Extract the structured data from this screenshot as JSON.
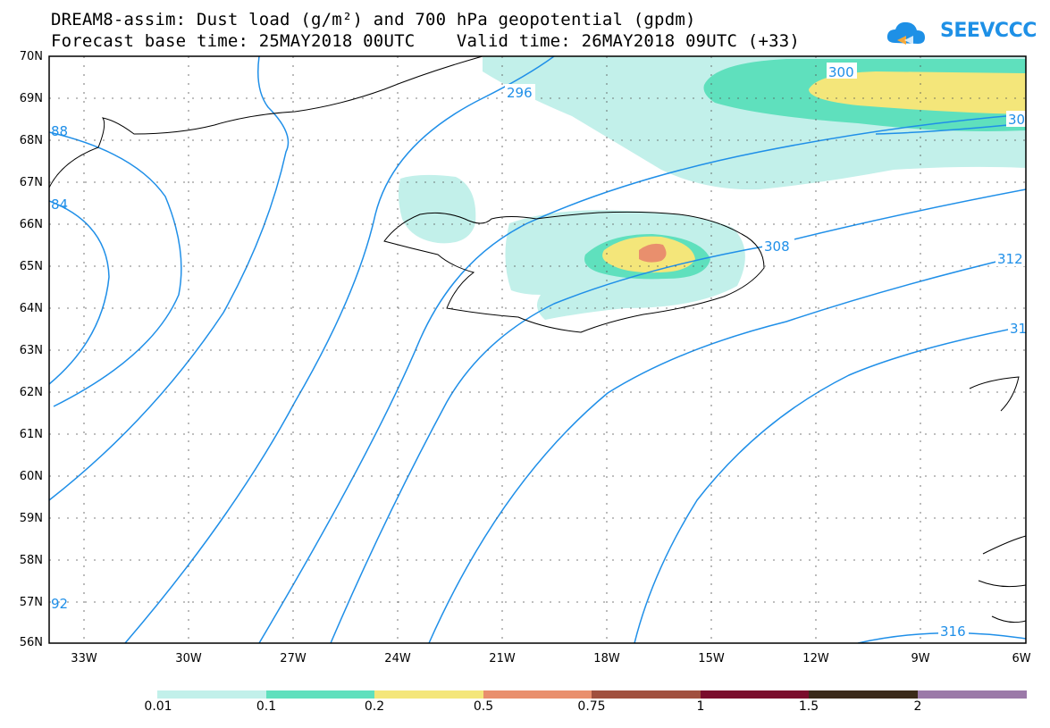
{
  "title": {
    "line1": "DREAM8-assim: Dust load (g/m²) and 700 hPa geopotential (gpdm)",
    "line2": "Forecast base time: 25MAY2018 00UTC    Valid time: 26MAY2018 09UTC (+33)"
  },
  "logo": {
    "text": "SEEVCCC",
    "icon": "cloud-icon",
    "color": "#1e90e6"
  },
  "map": {
    "lat_labels": [
      "70N",
      "69N",
      "68N",
      "67N",
      "66N",
      "65N",
      "64N",
      "63N",
      "62N",
      "61N",
      "60N",
      "59N",
      "58N",
      "57N",
      "56N"
    ],
    "lon_labels": [
      "33W",
      "30W",
      "27W",
      "24W",
      "21W",
      "18W",
      "15W",
      "12W",
      "9W",
      "6W"
    ],
    "contour_color": "#1f8fe8",
    "contour_labels": [
      "296",
      "300",
      "30",
      "308",
      "312",
      "31",
      "316",
      "88",
      "84",
      "92"
    ]
  },
  "colorbar": {
    "labels": [
      "0.01",
      "0.1",
      "0.2",
      "0.5",
      "0.75",
      "1",
      "1.5",
      "2"
    ],
    "colors": [
      "#c2f0ea",
      "#5fe0bd",
      "#f4e67a",
      "#e98f6d",
      "#a1503e",
      "#7a0c2c",
      "#3b2a1a",
      "#9b79a8"
    ]
  }
}
